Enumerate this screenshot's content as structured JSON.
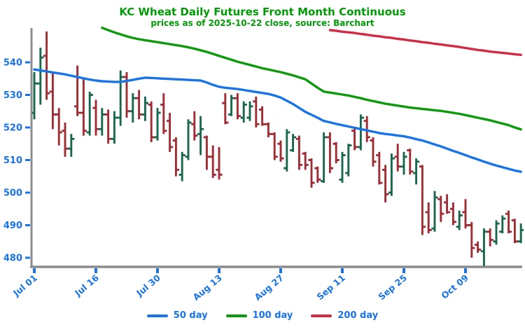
{
  "title": "KC Wheat Daily Futures Front Month Continuous",
  "subtitle": "prices as of 2025-10-22 close, source: Barchart",
  "colors": {
    "title_green": "#009b05",
    "axis_gray": "#8c8c8c",
    "tick_label_blue": "#1874e8",
    "bar_up_green": "#1b674e",
    "bar_down_red": "#9e2d35",
    "ma50_blue": "#1874e8",
    "ma100_green": "#0d9b0d",
    "ma200_red": "#d12b45"
  },
  "legend": [
    {
      "label": "50 day",
      "color": "#1874e8"
    },
    {
      "label": "100 day",
      "color": "#0d9b0d"
    },
    {
      "label": "200 day",
      "color": "#d12b45"
    }
  ],
  "chart_data": {
    "type": "bar",
    "subtype": "ohlc-daily",
    "title": "KC Wheat Daily Futures Front Month Continuous",
    "subtitle": "prices as of 2025-10-22 close, source: Barchart",
    "ylabel": "",
    "xlabel": "",
    "grid": false,
    "legend_position": "bottom-center",
    "y_ticks": [
      480,
      490,
      500,
      510,
      520,
      530,
      540
    ],
    "ylim": [
      477,
      551
    ],
    "x_tick_labels": [
      "Jul 01",
      "Jul 16",
      "Jul 30",
      "Aug 13",
      "Aug 27",
      "Sep 11",
      "Sep 25",
      "Oct 09"
    ],
    "x_tick_indices": [
      0,
      10,
      20,
      30,
      40,
      50,
      60,
      70
    ],
    "bars_ohlc_format": [
      "date",
      "open",
      "high",
      "low",
      "close"
    ],
    "bars": [
      [
        "Jul 01",
        524.5,
        537.0,
        522.5,
        533.5
      ],
      [
        "Jul 02",
        533.5,
        544.5,
        527.0,
        541.5
      ],
      [
        "Jul 03",
        542.0,
        549.5,
        528.5,
        530.5
      ],
      [
        "Jul 07",
        531.0,
        537.0,
        519.5,
        524.0
      ],
      [
        "Jul 08",
        524.0,
        526.0,
        514.5,
        518.5
      ],
      [
        "Jul 09",
        519.0,
        521.5,
        511.0,
        513.5
      ],
      [
        "Jul 10",
        513.5,
        518.0,
        511.0,
        516.5
      ],
      [
        "Jul 11",
        526.5,
        539.0,
        523.5,
        524.5
      ],
      [
        "Jul 14",
        524.5,
        535.0,
        517.5,
        519.0
      ],
      [
        "Jul 15",
        518.5,
        531.0,
        517.5,
        530.0
      ],
      [
        "Jul 16",
        526.0,
        528.5,
        517.5,
        519.5
      ],
      [
        "Jul 17",
        519.5,
        526.0,
        517.5,
        524.0
      ],
      [
        "Jul 18",
        524.0,
        525.5,
        515.0,
        516.5
      ],
      [
        "Jul 21",
        516.5,
        525.0,
        515.0,
        523.0
      ],
      [
        "Jul 22",
        523.0,
        537.5,
        520.5,
        535.5
      ],
      [
        "Jul 23",
        535.5,
        537.0,
        523.0,
        525.0
      ],
      [
        "Jul 24",
        525.0,
        530.5,
        521.5,
        529.0
      ],
      [
        "Jul 25",
        529.0,
        531.5,
        522.5,
        524.0
      ],
      [
        "Jul 28",
        524.0,
        529.5,
        522.0,
        527.5
      ],
      [
        "Jul 29",
        527.0,
        528.0,
        515.5,
        517.0
      ],
      [
        "Jul 30",
        517.0,
        526.0,
        516.0,
        524.5
      ],
      [
        "Jul 31",
        527.0,
        530.5,
        518.0,
        519.0
      ],
      [
        "Aug 01",
        522.0,
        524.5,
        512.5,
        514.0
      ],
      [
        "Aug 04",
        516.0,
        517.0,
        505.0,
        507.0
      ],
      [
        "Aug 05",
        505.5,
        512.5,
        503.5,
        511.5
      ],
      [
        "Aug 06",
        511.0,
        522.5,
        510.0,
        521.5
      ],
      [
        "Aug 07",
        521.0,
        525.0,
        516.0,
        517.5
      ],
      [
        "Aug 08",
        518.0,
        523.5,
        511.5,
        519.5
      ],
      [
        "Aug 11",
        517.0,
        517.5,
        507.0,
        511.0
      ],
      [
        "Aug 12",
        511.0,
        514.5,
        504.5,
        505.5
      ],
      [
        "Aug 13",
        507.0,
        514.0,
        504.0,
        505.5
      ],
      [
        "Aug 14",
        527.5,
        530.5,
        521.0,
        521.5
      ],
      [
        "Aug 15",
        524.0,
        530.0,
        523.5,
        529.0
      ],
      [
        "Aug 18",
        529.0,
        530.5,
        522.5,
        523.5
      ],
      [
        "Aug 19",
        523.0,
        528.0,
        521.5,
        527.0
      ],
      [
        "Aug 20",
        523.0,
        528.0,
        522.0,
        526.5
      ],
      [
        "Aug 21",
        528.0,
        529.5,
        520.0,
        521.0
      ],
      [
        "Aug 22",
        525.5,
        526.5,
        520.5,
        521.0
      ],
      [
        "Aug 25",
        521.0,
        521.5,
        517.0,
        518.0
      ],
      [
        "Aug 26",
        518.0,
        518.5,
        510.0,
        511.0
      ],
      [
        "Aug 27",
        515.0,
        516.0,
        509.5,
        510.5
      ],
      [
        "Aug 28",
        507.5,
        519.5,
        506.5,
        518.5
      ],
      [
        "Aug 29",
        513.0,
        518.0,
        512.5,
        517.0
      ],
      [
        "Sep 02",
        516.5,
        517.5,
        507.0,
        508.5
      ],
      [
        "Sep 03",
        512.0,
        512.5,
        507.0,
        508.5
      ],
      [
        "Sep 04",
        510.0,
        510.5,
        501.5,
        503.0
      ],
      [
        "Sep 05",
        507.5,
        508.0,
        503.0,
        504.0
      ],
      [
        "Sep 08",
        503.5,
        518.5,
        503.0,
        517.0
      ],
      [
        "Sep 09",
        517.0,
        518.5,
        506.0,
        507.5
      ],
      [
        "Sep 10",
        515.0,
        515.5,
        509.0,
        510.0
      ],
      [
        "Sep 11",
        504.0,
        512.5,
        503.0,
        511.5
      ],
      [
        "Sep 12",
        506.0,
        515.0,
        505.0,
        514.5
      ],
      [
        "Sep 15",
        519.0,
        520.0,
        513.0,
        514.0
      ],
      [
        "Sep 16",
        514.0,
        524.0,
        513.0,
        523.0
      ],
      [
        "Sep 17",
        522.0,
        523.5,
        515.5,
        517.0
      ],
      [
        "Sep 18",
        516.0,
        517.0,
        508.0,
        509.5
      ],
      [
        "Sep 19",
        511.5,
        512.5,
        502.5,
        503.0
      ],
      [
        "Sep 22",
        507.0,
        508.5,
        497.0,
        499.5
      ],
      [
        "Sep 23",
        500.0,
        512.0,
        499.0,
        510.5
      ],
      [
        "Sep 24",
        511.0,
        515.0,
        506.5,
        508.0
      ],
      [
        "Sep 25",
        508.0,
        512.5,
        505.5,
        511.0
      ],
      [
        "Sep 26",
        513.0,
        513.5,
        505.5,
        506.5
      ],
      [
        "Sep 29",
        506.0,
        510.5,
        502.5,
        509.5
      ],
      [
        "Sep 30",
        508.0,
        508.5,
        487.0,
        489.5
      ],
      [
        "Oct 01",
        494.0,
        497.0,
        487.5,
        488.5
      ],
      [
        "Oct 02",
        489.0,
        500.5,
        488.0,
        498.5
      ],
      [
        "Oct 03",
        498.0,
        499.0,
        491.0,
        493.5
      ],
      [
        "Oct 06",
        497.0,
        499.5,
        493.5,
        494.0
      ],
      [
        "Oct 07",
        495.0,
        497.0,
        490.0,
        491.0
      ],
      [
        "Oct 08",
        489.5,
        494.5,
        488.5,
        493.0
      ],
      [
        "Oct 09",
        494.0,
        498.0,
        489.0,
        490.0
      ],
      [
        "Oct 10",
        490.0,
        491.0,
        480.0,
        483.0
      ],
      [
        "Oct 13",
        484.0,
        485.0,
        481.5,
        482.5
      ],
      [
        "Oct 14",
        482.0,
        489.0,
        477.5,
        488.0
      ],
      [
        "Oct 15",
        488.0,
        489.0,
        483.5,
        485.5
      ],
      [
        "Oct 16",
        485.0,
        491.5,
        484.0,
        490.5
      ],
      [
        "Oct 17",
        488.0,
        493.0,
        487.5,
        492.0
      ],
      [
        "Oct 20",
        493.5,
        494.5,
        487.5,
        488.0
      ],
      [
        "Oct 21",
        491.5,
        492.0,
        484.5,
        485.0
      ],
      [
        "Oct 22",
        485.0,
        490.5,
        484.5,
        488.5
      ]
    ],
    "series": [
      {
        "name": "50 day",
        "start_index": 0,
        "values": [
          537.8,
          537.5,
          537.2,
          536.9,
          536.6,
          536.3,
          535.9,
          535.5,
          535.1,
          534.7,
          534.4,
          534.2,
          534.1,
          534.0,
          534.0,
          534.3,
          534.6,
          535.0,
          535.3,
          535.2,
          535.1,
          535.0,
          534.9,
          534.8,
          534.7,
          534.6,
          534.5,
          534.4,
          533.8,
          533.1,
          532.5,
          532.2,
          532.0,
          531.8,
          531.5,
          531.2,
          530.9,
          530.6,
          530.3,
          529.8,
          529.2,
          528.2,
          527.2,
          526.0,
          524.8,
          523.9,
          523.0,
          522.0,
          521.6,
          521.1,
          520.7,
          520.3,
          519.9,
          519.5,
          519.1,
          518.7,
          518.3,
          518.0,
          517.8,
          517.5,
          517.3,
          516.9,
          516.4,
          516.0,
          515.4,
          514.8,
          514.2,
          513.5,
          512.8,
          512.2,
          511.5,
          510.8,
          510.2,
          509.5,
          508.9,
          508.3,
          507.8,
          507.3,
          506.8,
          506.4
        ]
      },
      {
        "name": "100 day",
        "start_index": 11,
        "values": [
          550.6,
          549.9,
          549.2,
          548.6,
          548.0,
          547.5,
          547.1,
          546.8,
          546.5,
          546.2,
          545.9,
          545.6,
          545.3,
          545.0,
          544.6,
          544.2,
          543.7,
          543.2,
          542.6,
          542.0,
          541.4,
          540.8,
          540.2,
          539.7,
          539.2,
          538.7,
          538.2,
          537.8,
          537.4,
          537.0,
          536.5,
          536.0,
          535.4,
          534.8,
          533.5,
          532.2,
          531.0,
          530.7,
          530.4,
          530.1,
          529.8,
          529.4,
          529.0,
          528.5,
          528.1,
          527.7,
          527.3,
          527.0,
          526.7,
          526.4,
          526.1,
          525.9,
          525.7,
          525.5,
          525.3,
          525.1,
          524.8,
          524.5,
          524.2,
          523.8,
          523.4,
          523.0,
          522.6,
          522.2,
          521.7,
          521.2,
          520.7,
          520.0,
          519.4
        ]
      },
      {
        "name": "200 day",
        "start_index": 48,
        "values": [
          549.9,
          549.7,
          549.4,
          549.2,
          549.0,
          548.7,
          548.5,
          548.2,
          548.0,
          547.7,
          547.5,
          547.2,
          547.0,
          546.7,
          546.5,
          546.2,
          546.0,
          545.7,
          545.5,
          545.2,
          545.0,
          544.7,
          544.4,
          544.1,
          543.8,
          543.6,
          543.3,
          543.1,
          542.9,
          542.7,
          542.5,
          542.3
        ]
      }
    ]
  }
}
